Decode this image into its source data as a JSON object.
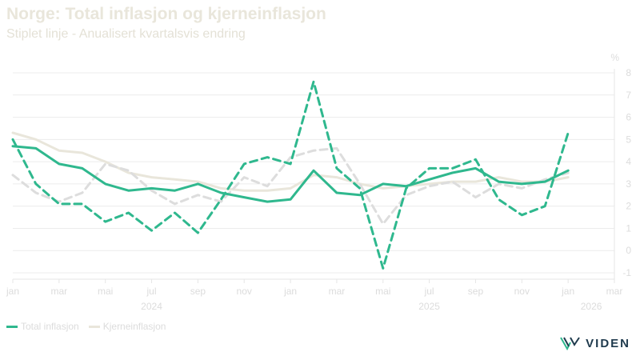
{
  "header": {
    "title": "Norge: Total inflasjon og kjerneinflasjon",
    "subtitle": "Stiplet linje - Anualisert kvartalsvis endring"
  },
  "brand": {
    "name": "VIDEN"
  },
  "colors": {
    "total": "#2fb88e",
    "core": "#e9e6db",
    "total_quarterly": "#2fb88e",
    "core_quarterly": "#dddddd"
  },
  "chart_data": {
    "type": "line",
    "title": "Norge: Total inflasjon og kjerneinflasjon",
    "subtitle": "Stiplet linje - Anualisert kvartalsvis endring",
    "y_unit_label": "%",
    "ylim": [
      -1,
      8
    ],
    "y_ticks": [
      -1,
      0,
      1,
      2,
      3,
      4,
      5,
      6,
      7,
      8
    ],
    "x_range": [
      "2024-01",
      "2026-03"
    ],
    "x_ticks": [
      {
        "x": "2024-01",
        "label": "jan"
      },
      {
        "x": "2024-03",
        "label": "mar"
      },
      {
        "x": "2024-05",
        "label": "mai"
      },
      {
        "x": "2024-07",
        "label": "jul"
      },
      {
        "x": "2024-09",
        "label": "sep"
      },
      {
        "x": "2024-11",
        "label": "nov"
      },
      {
        "x": "2025-01",
        "label": "jan"
      },
      {
        "x": "2025-03",
        "label": "mar"
      },
      {
        "x": "2025-05",
        "label": "mai"
      },
      {
        "x": "2025-07",
        "label": "jul"
      },
      {
        "x": "2025-09",
        "label": "sep"
      },
      {
        "x": "2025-11",
        "label": "nov"
      },
      {
        "x": "2026-01",
        "label": "jan"
      },
      {
        "x": "2026-03",
        "label": "mar"
      }
    ],
    "year_labels": [
      {
        "x": "2024-07",
        "label": "2024"
      },
      {
        "x": "2025-07",
        "label": "2025"
      },
      {
        "x": "2026-02",
        "label": "2026"
      }
    ],
    "grid": true,
    "legend_position": "bottom-left",
    "x": [
      "2024-01",
      "2024-02",
      "2024-03",
      "2024-04",
      "2024-05",
      "2024-06",
      "2024-07",
      "2024-08",
      "2024-09",
      "2024-10",
      "2024-11",
      "2024-12",
      "2025-01",
      "2025-02",
      "2025-03",
      "2025-04",
      "2025-05",
      "2025-06",
      "2025-07",
      "2025-08",
      "2025-09",
      "2025-10",
      "2025-11",
      "2025-12",
      "2026-01"
    ],
    "series": [
      {
        "name": "Total inflasjon",
        "style": "solid",
        "values": [
          4.7,
          4.6,
          3.9,
          3.7,
          3.0,
          2.7,
          2.8,
          2.7,
          3.0,
          2.6,
          2.4,
          2.2,
          2.3,
          3.6,
          2.6,
          2.5,
          3.0,
          2.9,
          3.2,
          3.5,
          3.7,
          3.1,
          3.0,
          3.1,
          3.6
        ]
      },
      {
        "name": "Kjerneinflasjon",
        "style": "solid",
        "values": [
          5.3,
          5.0,
          4.5,
          4.4,
          4.0,
          3.5,
          3.3,
          3.2,
          3.1,
          2.8,
          2.7,
          2.7,
          2.8,
          3.4,
          3.3,
          3.0,
          2.8,
          2.9,
          3.0,
          3.1,
          3.1,
          3.3,
          3.1,
          3.1,
          3.3
        ]
      },
      {
        "name": "",
        "style": "dashed",
        "values": [
          5.0,
          3.0,
          2.1,
          2.1,
          1.3,
          1.7,
          0.9,
          1.7,
          0.8,
          2.3,
          3.9,
          4.2,
          3.9,
          7.6,
          3.7,
          2.8,
          -0.8,
          2.8,
          3.7,
          3.7,
          4.1,
          2.3,
          1.6,
          2.0,
          5.3
        ]
      },
      {
        "name": "",
        "style": "dashed",
        "values": [
          3.4,
          2.6,
          2.2,
          2.6,
          3.9,
          3.6,
          2.7,
          2.1,
          2.5,
          2.2,
          3.3,
          2.9,
          4.2,
          4.5,
          4.6,
          3.0,
          1.2,
          2.5,
          2.9,
          3.1,
          2.4,
          3.0,
          2.8,
          3.2,
          3.5
        ]
      }
    ]
  }
}
